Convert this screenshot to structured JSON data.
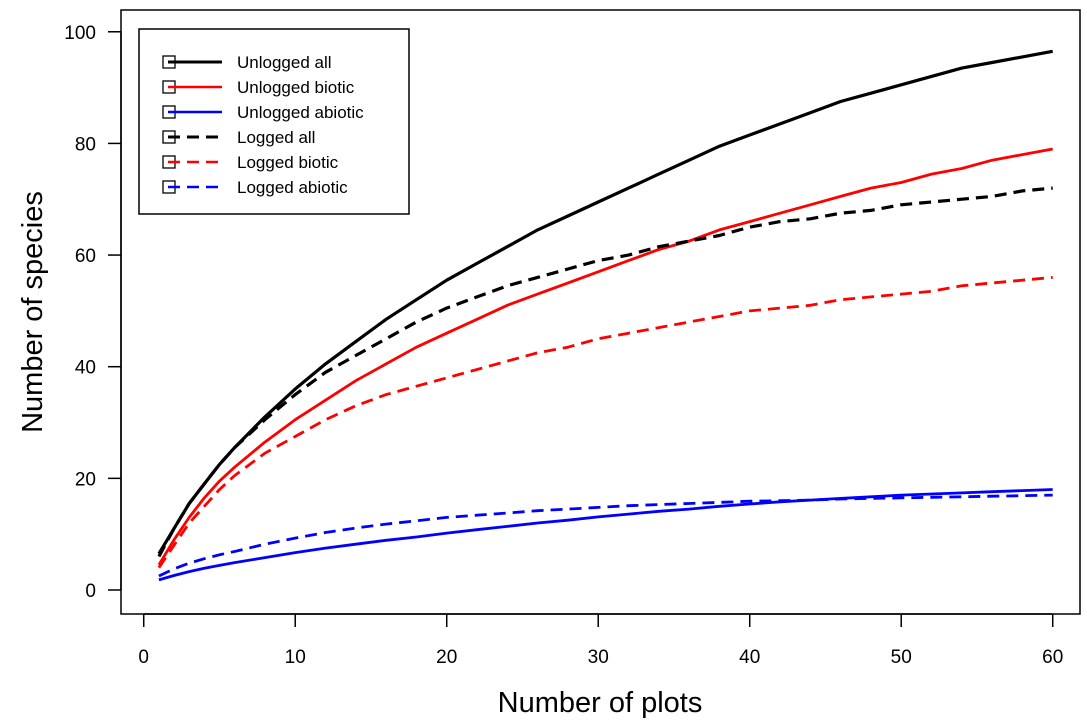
{
  "chart_data": {
    "type": "line",
    "title": "",
    "xlabel": "Number of plots",
    "ylabel": "Number of species",
    "xlim": [
      -1.5,
      61.8
    ],
    "ylim": [
      -4.3,
      103.9
    ],
    "xticks": [
      "0",
      "10",
      "20",
      "30",
      "40",
      "50",
      "60"
    ],
    "xtick_values": [
      0,
      10,
      20,
      30,
      40,
      50,
      60
    ],
    "yticks": [
      "0",
      "20",
      "40",
      "60",
      "80",
      "100"
    ],
    "ytick_values": [
      0,
      20,
      40,
      60,
      80,
      100
    ],
    "grid": false,
    "legend_position": "top-left",
    "series": [
      {
        "name": "Unlogged all",
        "color": "#000000",
        "dash": "solid",
        "x": [
          1,
          2,
          3,
          4,
          5,
          6,
          8,
          10,
          12,
          14,
          16,
          18,
          20,
          22,
          24,
          26,
          28,
          30,
          32,
          34,
          36,
          38,
          40,
          42,
          44,
          46,
          48,
          50,
          52,
          54,
          56,
          58,
          60
        ],
        "values": [
          6.5,
          11,
          15.5,
          19,
          22.5,
          25.5,
          31,
          36,
          40.5,
          44.5,
          48.5,
          52,
          55.5,
          58.5,
          61.5,
          64.5,
          67,
          69.5,
          72,
          74.5,
          77,
          79.5,
          81.5,
          83.5,
          85.5,
          87.5,
          89,
          90.5,
          92,
          93.5,
          94.5,
          95.5,
          96.5
        ]
      },
      {
        "name": "Unlogged biotic",
        "color": "#ff0000",
        "dash": "solid",
        "x": [
          1,
          2,
          3,
          4,
          5,
          6,
          8,
          10,
          12,
          14,
          16,
          18,
          20,
          22,
          24,
          26,
          28,
          30,
          32,
          34,
          36,
          38,
          40,
          42,
          44,
          46,
          48,
          50,
          52,
          54,
          56,
          58,
          60
        ],
        "values": [
          4.5,
          9,
          13,
          16.5,
          19.5,
          22,
          26.5,
          30.5,
          34,
          37.5,
          40.5,
          43.5,
          46,
          48.5,
          51,
          53,
          55,
          57,
          59,
          61,
          62.5,
          64.5,
          66,
          67.5,
          69,
          70.5,
          72,
          73,
          74.5,
          75.5,
          77,
          78,
          79
        ]
      },
      {
        "name": "Unlogged abiotic",
        "color": "#0000ff",
        "dash": "solid",
        "x": [
          1,
          2,
          3,
          4,
          5,
          6,
          8,
          10,
          12,
          14,
          16,
          18,
          20,
          22,
          24,
          26,
          28,
          30,
          32,
          34,
          36,
          38,
          40,
          42,
          44,
          46,
          48,
          50,
          52,
          54,
          56,
          58,
          60
        ],
        "values": [
          1.8,
          2.6,
          3.3,
          3.9,
          4.4,
          4.9,
          5.8,
          6.7,
          7.5,
          8.2,
          8.9,
          9.5,
          10.2,
          10.8,
          11.4,
          12,
          12.5,
          13.1,
          13.6,
          14.1,
          14.5,
          15,
          15.4,
          15.8,
          16.1,
          16.4,
          16.7,
          17,
          17.2,
          17.4,
          17.6,
          17.8,
          18
        ]
      },
      {
        "name": "Logged all",
        "color": "#000000",
        "dash": "dashed",
        "x": [
          1,
          2,
          3,
          4,
          5,
          6,
          8,
          10,
          12,
          14,
          16,
          18,
          20,
          22,
          24,
          26,
          28,
          30,
          32,
          34,
          36,
          38,
          40,
          42,
          44,
          46,
          48,
          50,
          52,
          54,
          56,
          58,
          60
        ],
        "values": [
          6,
          11,
          15.5,
          19,
          22.5,
          25.5,
          30.5,
          35,
          39,
          42,
          45,
          48,
          50.5,
          52.5,
          54.5,
          56,
          57.5,
          59,
          60,
          61.5,
          62.5,
          63.5,
          65,
          66,
          66.5,
          67.5,
          68,
          69,
          69.5,
          70,
          70.5,
          71.5,
          72
        ]
      },
      {
        "name": "Logged biotic",
        "color": "#ff0000",
        "dash": "dashed",
        "x": [
          1,
          2,
          3,
          4,
          5,
          6,
          8,
          10,
          12,
          14,
          16,
          18,
          20,
          22,
          24,
          26,
          28,
          30,
          32,
          34,
          36,
          38,
          40,
          42,
          44,
          46,
          48,
          50,
          52,
          54,
          56,
          58,
          60
        ],
        "values": [
          4,
          8,
          12,
          15,
          18,
          20.5,
          24.5,
          27.5,
          30.5,
          33,
          35,
          36.5,
          38,
          39.5,
          41,
          42.5,
          43.5,
          45,
          46,
          47,
          48,
          49,
          50,
          50.5,
          51,
          52,
          52.5,
          53,
          53.5,
          54.5,
          55,
          55.5,
          56
        ]
      },
      {
        "name": "Logged abiotic",
        "color": "#0000ff",
        "dash": "dashed",
        "x": [
          1,
          2,
          3,
          4,
          5,
          6,
          8,
          10,
          12,
          14,
          16,
          18,
          20,
          22,
          24,
          26,
          28,
          30,
          32,
          34,
          36,
          38,
          40,
          42,
          44,
          46,
          48,
          50,
          52,
          54,
          56,
          58,
          60
        ],
        "values": [
          2.5,
          3.8,
          4.8,
          5.6,
          6.3,
          6.9,
          8.2,
          9.3,
          10.3,
          11.1,
          11.8,
          12.4,
          13,
          13.4,
          13.8,
          14.2,
          14.5,
          14.8,
          15.1,
          15.3,
          15.5,
          15.7,
          15.9,
          16,
          16.1,
          16.3,
          16.4,
          16.5,
          16.6,
          16.7,
          16.8,
          16.9,
          17
        ]
      }
    ]
  }
}
